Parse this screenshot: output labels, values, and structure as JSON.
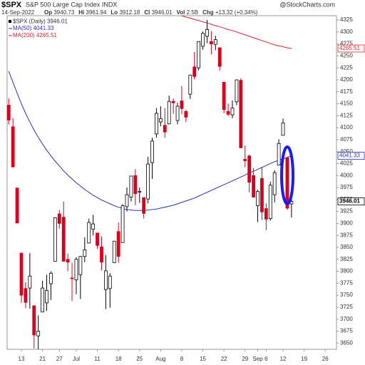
{
  "header": {
    "symbol": "$SPX",
    "name": "S&P 500 Large Cap Index INDX",
    "source": "@StockCharts.com",
    "date": "14-Sep-2022",
    "quote": [
      {
        "label": "Op",
        "value": "3940.73"
      },
      {
        "label": "Hi",
        "value": "3961.94"
      },
      {
        "label": "Lo",
        "value": "3912.18"
      },
      {
        "label": "Cl",
        "value": "3946.01"
      },
      {
        "label": "Vol",
        "value": "2.5B"
      },
      {
        "label": "Chg",
        "value": "+13.32 (+0.34%)"
      }
    ]
  },
  "chart_data": {
    "type": "candlestick",
    "legend": "$SPX (Daily)",
    "last_close": 3946.01,
    "up_color": "#000000",
    "down_color": "#d6001c",
    "categories": [
      null,
      null,
      null,
      "13",
      null,
      null,
      null,
      null,
      "21",
      null,
      null,
      null,
      "27",
      null,
      null,
      null,
      "Jul",
      null,
      null,
      null,
      null,
      "11",
      null,
      null,
      null,
      null,
      "18",
      null,
      null,
      null,
      null,
      "25",
      null,
      null,
      null,
      null,
      "Aug",
      null,
      null,
      null,
      null,
      "8",
      null,
      null,
      null,
      null,
      "15",
      null,
      null,
      null,
      null,
      "22",
      null,
      null,
      null,
      null,
      "29",
      null,
      null,
      "Sep",
      null,
      "6",
      null,
      null,
      null,
      "12",
      null,
      null,
      null,
      null,
      "19",
      null,
      null,
      null,
      null,
      "26"
    ],
    "open": [
      4147,
      4102,
      3974,
      3838,
      3764,
      3765,
      3728,
      3665,
      3715,
      3734,
      3774,
      3821,
      3920,
      3913,
      3825,
      3786,
      3782,
      3793,
      3831,
      3859,
      3888,
      3880,
      3851,
      3762,
      3764,
      3818,
      3883,
      3860,
      3935,
      3955,
      4000,
      3965,
      3954,
      3951,
      4027,
      4087,
      4112,
      4105,
      4108,
      4155,
      4115,
      4156,
      4134,
      4170,
      4227,
      4225,
      4270,
      4291,
      4280,
      4274,
      4267,
      4195,
      4134,
      4127,
      4154,
      4199,
      4034,
      4041,
      4000,
      3937,
      3994,
      3931,
      3910,
      3960,
      4022,
      4084,
      4037,
      3940.73,
      null,
      null,
      null,
      null,
      null,
      null,
      null,
      null
    ],
    "high": [
      4161,
      4120,
      3974,
      3838,
      3777,
      3838,
      3728,
      3708,
      3780,
      3793,
      3800,
      3913,
      3928,
      3946,
      3837,
      3818,
      3829,
      3832,
      3871,
      3910,
      3918,
      3880,
      3873,
      3834,
      3796,
      3863,
      3902,
      3940,
      3975,
      3999,
      4013,
      3975,
      3954,
      4039,
      4079,
      4141,
      4145,
      4141,
      4167,
      4161,
      4152,
      4187,
      4137,
      4211,
      4258,
      4280,
      4301,
      4325,
      4302,
      4292,
      4267,
      4195,
      4150,
      4157,
      4200,
      4203,
      4063,
      4044,
      4016,
      3970,
      4018,
      3942,
      3987,
      4011,
      4076,
      4119,
      4038,
      3961.94,
      null,
      null,
      null,
      null,
      null,
      null,
      null,
      null
    ],
    "low": [
      4107,
      4017,
      3900,
      3734,
      3723,
      3722,
      3639,
      3637,
      3715,
      3717,
      3740,
      3821,
      3889,
      3820,
      3800,
      3738,
      3752,
      3742,
      3819,
      3859,
      3875,
      3847,
      3802,
      3721,
      3724,
      3818,
      3818,
      3860,
      3925,
      3946,
      3938,
      3943,
      3910,
      3942,
      3993,
      4079,
      4103,
      4079,
      4107,
      4129,
      4107,
      4128,
      4112,
      4160,
      4201,
      4220,
      4263,
      4277,
      4253,
      4262,
      4219,
      4130,
      4124,
      4120,
      4147,
      4057,
      4017,
      3965,
      3954,
      3903,
      3907,
      3886,
      3906,
      3944,
      4022,
      4084,
      3928,
      3912.18,
      null,
      null,
      null,
      null,
      null,
      null,
      null,
      null
    ],
    "close": [
      4116,
      4018,
      3901,
      3750,
      3735,
      3790,
      3667,
      3675,
      3765,
      3760,
      3796,
      3912,
      3900,
      3821,
      3819,
      3785,
      3825,
      3831,
      3845,
      3902,
      3899,
      3854,
      3819,
      3801,
      3790,
      3863,
      3831,
      3937,
      3960,
      3999,
      3962,
      3967,
      3921,
      4024,
      4072,
      4130,
      4119,
      4091,
      4155,
      4152,
      4145,
      4140,
      4122,
      4210,
      4207,
      4280,
      4297,
      4305,
      4275,
      4284,
      4228,
      4138,
      4128,
      4141,
      4200,
      4058,
      4031,
      3986,
      3955,
      3967,
      3924,
      3909,
      3980,
      4006,
      4067,
      4110,
      3932,
      3946.01,
      null,
      null,
      null,
      null,
      null,
      null,
      null,
      null
    ],
    "lines": [
      {
        "name": "MA(50)",
        "color": "#2b2fb8",
        "last_value": 4041.33,
        "values": [
          4218,
          4195,
          4172,
          4150,
          4130,
          4112,
          4095,
          4080,
          4066,
          4053,
          4041,
          4030,
          4020,
          4010,
          4001,
          3993,
          3985,
          3978,
          3971,
          3965,
          3959,
          3954,
          3949,
          3945,
          3941,
          3937,
          3934,
          3931,
          3929,
          3928,
          3927,
          3927,
          3927,
          3928,
          3929,
          3930,
          3932,
          3934,
          3936,
          3938,
          3941,
          3944,
          3947,
          3950,
          3953,
          3957,
          3961,
          3965,
          3969,
          3973,
          3977,
          3981,
          3985,
          3989,
          3993,
          3997,
          4001,
          4005,
          4009,
          4013,
          4017,
          4021,
          4025,
          4029,
          4032,
          4035,
          4038,
          4041.33,
          null,
          null,
          null,
          null,
          null,
          null,
          null,
          null
        ]
      },
      {
        "name": "MA(200)",
        "color": "#d6232e",
        "last_value": 4265.51,
        "values": [
          null,
          null,
          null,
          null,
          null,
          null,
          null,
          null,
          null,
          null,
          null,
          null,
          null,
          null,
          null,
          null,
          null,
          null,
          null,
          null,
          null,
          null,
          null,
          null,
          null,
          null,
          null,
          null,
          null,
          null,
          null,
          null,
          null,
          null,
          null,
          null,
          null,
          null,
          null,
          null,
          4336,
          4334,
          4331,
          4329,
          4326,
          4324,
          4321,
          4319,
          4316,
          4313,
          4311,
          4308,
          4305,
          4303,
          4300,
          4297,
          4294,
          4291,
          4288,
          4285,
          4282,
          4279,
          4276,
          4273,
          4271,
          4269,
          4267,
          4265.51,
          null,
          null,
          null,
          null,
          null,
          null,
          null,
          null
        ]
      }
    ],
    "ylim": [
      3637,
      4334
    ],
    "yticks": [
      3650,
      3675,
      3700,
      3725,
      3750,
      3775,
      3800,
      3825,
      3850,
      3875,
      3900,
      3925,
      3950,
      3975,
      4000,
      4025,
      4050,
      4075,
      4100,
      4125,
      4150,
      4175,
      4200,
      4225,
      4250,
      4275,
      4300,
      4325
    ],
    "grid": false
  }
}
